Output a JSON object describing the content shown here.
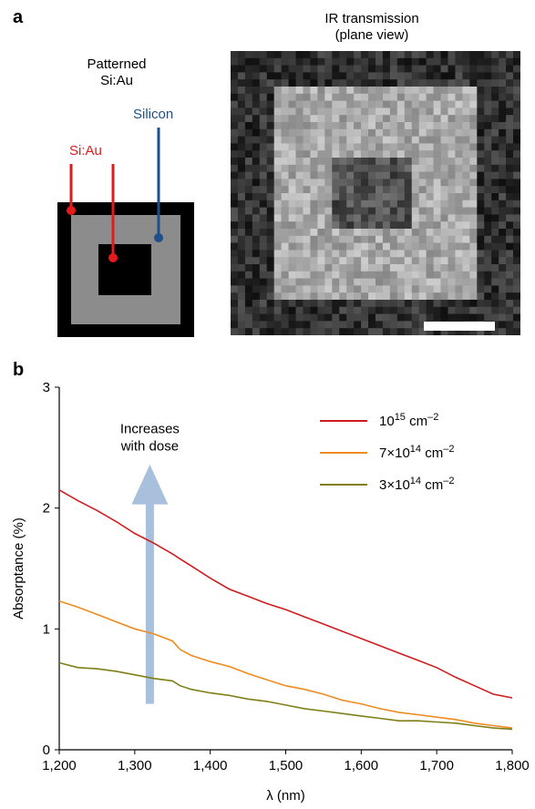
{
  "panel_a": {
    "letter": "a",
    "schematic": {
      "title_line1": "Patterned",
      "title_line2": "Si:Au",
      "label_siau": "Si:Au",
      "label_silicon": "Silicon",
      "colors": {
        "outer": "#000000",
        "middle": "#8c8c8c",
        "siau_label": "#e41a1c",
        "silicon_label": "#1f4e8a"
      }
    },
    "ir_image": {
      "title_line1": "IR transmission",
      "title_line2": "(plane view)"
    }
  },
  "panel_b": {
    "letter": "b",
    "annotation_line1": "Increases",
    "annotation_line2": "with dose",
    "arrow_color": "#a9c0dd"
  },
  "chart_data": {
    "type": "line",
    "xlabel": "λ (nm)",
    "ylabel": "Absorptance (%)",
    "xlim": [
      1200,
      1800
    ],
    "ylim": [
      0,
      3
    ],
    "xticks": [
      1200,
      1300,
      1400,
      1500,
      1600,
      1700,
      1800
    ],
    "xtick_labels": [
      "1,200",
      "1,300",
      "1,400",
      "1,500",
      "1,600",
      "1,700",
      "1,800"
    ],
    "yticks": [
      0,
      1,
      2,
      3
    ],
    "ytick_labels": [
      "0",
      "1",
      "2",
      "3"
    ],
    "legend_position": "top-right",
    "series": [
      {
        "name_base": "10",
        "name_exp": "15",
        "name_unit": " cm",
        "name_unit_exp": "–2",
        "color": "#d01c1c",
        "x": [
          1200,
          1225,
          1250,
          1275,
          1300,
          1325,
          1350,
          1360,
          1375,
          1400,
          1425,
          1450,
          1475,
          1500,
          1525,
          1550,
          1575,
          1600,
          1625,
          1650,
          1675,
          1700,
          1725,
          1750,
          1775,
          1800
        ],
        "y": [
          2.15,
          2.06,
          1.98,
          1.89,
          1.79,
          1.71,
          1.62,
          1.58,
          1.52,
          1.42,
          1.33,
          1.27,
          1.21,
          1.16,
          1.1,
          1.04,
          0.98,
          0.92,
          0.86,
          0.8,
          0.74,
          0.68,
          0.6,
          0.53,
          0.46,
          0.43
        ]
      },
      {
        "name_base": "7×10",
        "name_exp": "14",
        "name_unit": " cm",
        "name_unit_exp": "–2",
        "color": "#ef8b1f",
        "x": [
          1200,
          1225,
          1250,
          1275,
          1300,
          1325,
          1350,
          1360,
          1375,
          1400,
          1425,
          1450,
          1475,
          1500,
          1525,
          1550,
          1575,
          1600,
          1625,
          1650,
          1675,
          1700,
          1725,
          1750,
          1775,
          1800
        ],
        "y": [
          1.23,
          1.18,
          1.12,
          1.06,
          1.0,
          0.96,
          0.9,
          0.83,
          0.78,
          0.73,
          0.69,
          0.63,
          0.58,
          0.53,
          0.5,
          0.46,
          0.41,
          0.38,
          0.34,
          0.31,
          0.29,
          0.27,
          0.25,
          0.22,
          0.2,
          0.18
        ]
      },
      {
        "name_base": "3×10",
        "name_exp": "14",
        "name_unit": " cm",
        "name_unit_exp": "–2",
        "color": "#7f7f17",
        "x": [
          1200,
          1225,
          1250,
          1275,
          1300,
          1325,
          1350,
          1360,
          1375,
          1400,
          1425,
          1450,
          1475,
          1500,
          1525,
          1550,
          1575,
          1600,
          1625,
          1650,
          1675,
          1700,
          1725,
          1750,
          1775,
          1800
        ],
        "y": [
          0.72,
          0.68,
          0.67,
          0.65,
          0.62,
          0.59,
          0.57,
          0.53,
          0.5,
          0.47,
          0.45,
          0.42,
          0.4,
          0.37,
          0.34,
          0.32,
          0.3,
          0.28,
          0.26,
          0.24,
          0.24,
          0.23,
          0.22,
          0.2,
          0.18,
          0.17
        ]
      }
    ]
  }
}
